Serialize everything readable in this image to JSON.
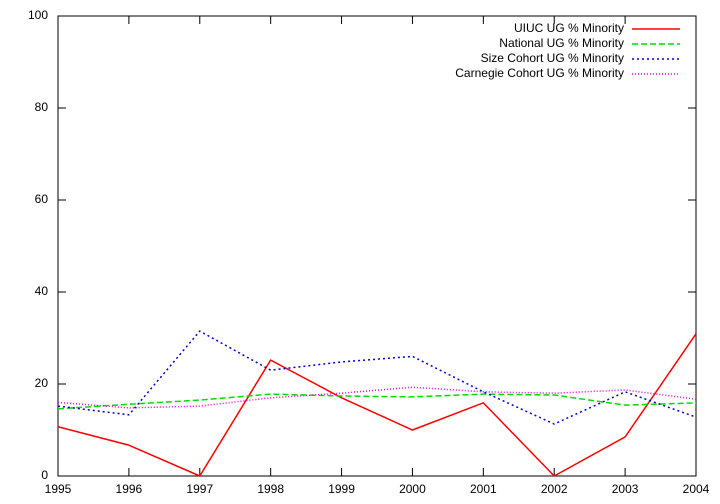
{
  "chart_data": {
    "type": "line",
    "x": [
      1995,
      1996,
      1997,
      1998,
      1999,
      2000,
      2001,
      2002,
      2003,
      2004
    ],
    "xlim": [
      1995,
      2004
    ],
    "xticks": [
      1995,
      1996,
      1997,
      1998,
      1999,
      2000,
      2001,
      2002,
      2003,
      2004
    ],
    "ylim": [
      0,
      100
    ],
    "yticks": [
      0,
      20,
      40,
      60,
      80,
      100
    ],
    "grid": false,
    "legend": "top-right",
    "series": [
      {
        "name": "UIUC UG % Minority",
        "color": "#ff0000",
        "dash": "solid",
        "values": [
          10.7,
          6.7,
          0,
          25.2,
          17,
          10,
          15.9,
          0,
          8.5,
          30.9
        ]
      },
      {
        "name": "National UG % Minority",
        "color": "#00dd00",
        "dash": "dashed",
        "values": [
          14.6,
          15.6,
          16.5,
          17.8,
          17.4,
          17.2,
          17.8,
          17.6,
          15.4,
          15.9
        ]
      },
      {
        "name": "Size Cohort UG % Minority",
        "color": "#0000cc",
        "dash": "dotted",
        "values": [
          15.2,
          13.3,
          31.5,
          23,
          24.8,
          26,
          18.3,
          11.3,
          18.3,
          12.8
        ]
      },
      {
        "name": "Carnegie Cohort UG % Minority",
        "color": "#ee00ee",
        "dash": "fine-dotted",
        "values": [
          16,
          14.8,
          15.2,
          17,
          18,
          19.3,
          18.3,
          18,
          18.7,
          16.7
        ]
      }
    ]
  }
}
